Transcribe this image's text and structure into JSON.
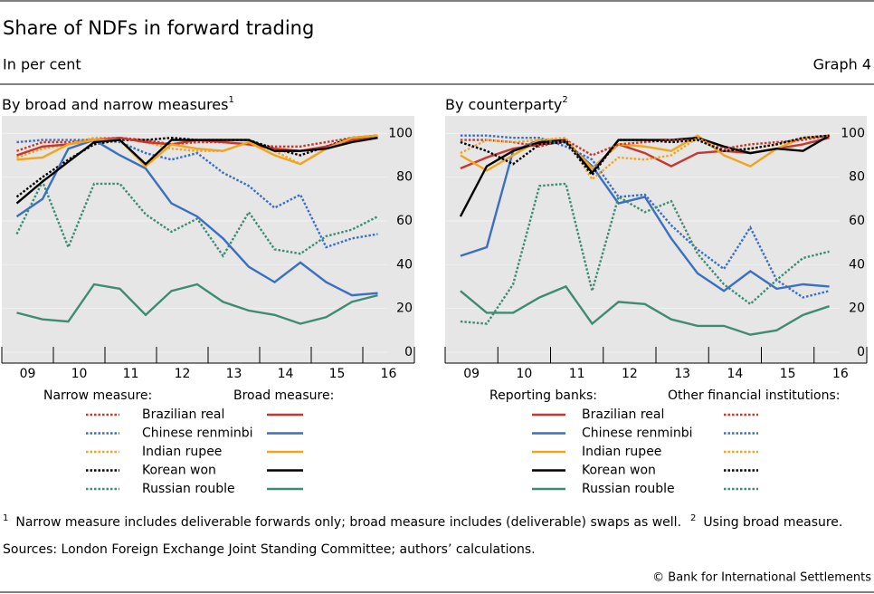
{
  "header": {
    "title": "Share of NDFs in forward trading",
    "subtitle": "In per cent",
    "graph_label": "Graph 4"
  },
  "chart_data": [
    {
      "type": "line",
      "title": "By broad and narrow measures",
      "title_note": "1",
      "categories": [
        "09",
        null,
        "10",
        null,
        "11",
        null,
        "12",
        null,
        "13",
        null,
        "14",
        null,
        "15",
        null,
        "16"
      ],
      "ylim": [
        -5,
        108
      ],
      "yticks": [
        0,
        20,
        40,
        60,
        80,
        100
      ],
      "currencies": [
        {
          "name": "Brazilian real",
          "color": "#c8372d"
        },
        {
          "name": "Chinese renminbi",
          "color": "#3a6fc4"
        },
        {
          "name": "Indian rupee",
          "color": "#f2a51c"
        },
        {
          "name": "Korean won",
          "color": "#000000"
        },
        {
          "name": "Russian rouble",
          "color": "#3f8c73"
        }
      ],
      "groups": [
        {
          "label": "Narrow measure:",
          "style": "dotted",
          "series": [
            {
              "values": [
                92,
                96,
                96,
                97,
                98,
                97,
                95,
                96,
                96,
                95,
                94,
                94,
                96,
                98,
                99
              ]
            },
            {
              "values": [
                96,
                97,
                97,
                97,
                96,
                91,
                88,
                91,
                82,
                76,
                66,
                72,
                48,
                52,
                54
              ]
            },
            {
              "values": [
                89,
                93,
                95,
                98,
                98,
                96,
                93,
                92,
                92,
                96,
                92,
                86,
                93,
                98,
                99
              ]
            },
            {
              "values": [
                71,
                80,
                88,
                95,
                97,
                97,
                98,
                97,
                97,
                97,
                93,
                90,
                94,
                98,
                99
              ]
            },
            {
              "values": [
                54,
                78,
                48,
                77,
                77,
                63,
                55,
                61,
                44,
                64,
                47,
                45,
                53,
                56,
                62
              ]
            }
          ]
        },
        {
          "label": "Broad measure:",
          "style": "solid",
          "series": [
            {
              "values": [
                90,
                94,
                95,
                97,
                98,
                96,
                95,
                97,
                96,
                95,
                93,
                92,
                94,
                97,
                99
              ]
            },
            {
              "values": [
                62,
                70,
                93,
                97,
                90,
                84,
                68,
                62,
                52,
                39,
                32,
                41,
                32,
                26,
                27
              ]
            },
            {
              "values": [
                88,
                89,
                95,
                97,
                97,
                85,
                95,
                93,
                92,
                96,
                90,
                86,
                93,
                98,
                99
              ]
            },
            {
              "values": [
                68,
                78,
                87,
                96,
                97,
                86,
                97,
                97,
                97,
                97,
                92,
                92,
                93,
                96,
                98
              ]
            },
            {
              "values": [
                18,
                15,
                14,
                31,
                29,
                17,
                28,
                31,
                23,
                19,
                17,
                13,
                16,
                23,
                26
              ]
            }
          ]
        }
      ]
    },
    {
      "type": "line",
      "title": "By counterparty",
      "title_note": "2",
      "categories": [
        "09",
        null,
        "10",
        null,
        "11",
        null,
        "12",
        null,
        "13",
        null,
        "14",
        null,
        "15",
        null,
        "16"
      ],
      "ylim": [
        -5,
        108
      ],
      "yticks": [
        0,
        20,
        40,
        60,
        80,
        100
      ],
      "currencies": [
        {
          "name": "Brazilian real",
          "color": "#c8372d"
        },
        {
          "name": "Chinese renminbi",
          "color": "#3a6fc4"
        },
        {
          "name": "Indian rupee",
          "color": "#f2a51c"
        },
        {
          "name": "Korean won",
          "color": "#000000"
        },
        {
          "name": "Russian rouble",
          "color": "#3f8c73"
        }
      ],
      "groups": [
        {
          "label": "Reporting banks:",
          "style": "solid",
          "series": [
            {
              "values": [
                84,
                89,
                93,
                95,
                97,
                84,
                95,
                91,
                85,
                91,
                92,
                91,
                93,
                95,
                98
              ]
            },
            {
              "values": [
                44,
                48,
                92,
                97,
                96,
                85,
                68,
                71,
                52,
                36,
                28,
                37,
                29,
                31,
                30
              ]
            },
            {
              "values": [
                90,
                83,
                90,
                97,
                97,
                84,
                95,
                94,
                92,
                99,
                90,
                85,
                93,
                98,
                99
              ]
            },
            {
              "values": [
                62,
                85,
                92,
                96,
                97,
                82,
                97,
                97,
                97,
                98,
                94,
                91,
                93,
                92,
                99
              ]
            },
            {
              "values": [
                28,
                18,
                18,
                25,
                30,
                13,
                23,
                22,
                15,
                12,
                12,
                8,
                10,
                17,
                21
              ]
            }
          ]
        },
        {
          "label": "Other financial institutions:",
          "style": "dotted",
          "series": [
            {
              "values": [
                97,
                97,
                96,
                94,
                97,
                90,
                95,
                96,
                97,
                97,
                93,
                95,
                96,
                97,
                99
              ]
            },
            {
              "values": [
                99,
                99,
                98,
                98,
                94,
                88,
                71,
                72,
                58,
                47,
                38,
                57,
                33,
                25,
                28
              ]
            },
            {
              "values": [
                91,
                97,
                96,
                97,
                98,
                79,
                89,
                88,
                90,
                98,
                92,
                93,
                95,
                98,
                99
              ]
            },
            {
              "values": [
                96,
                92,
                86,
                95,
                96,
                81,
                97,
                97,
                96,
                97,
                92,
                93,
                95,
                98,
                99
              ]
            },
            {
              "values": [
                14,
                13,
                31,
                76,
                77,
                28,
                71,
                64,
                69,
                45,
                31,
                22,
                33,
                43,
                46
              ]
            }
          ]
        }
      ]
    }
  ],
  "footnotes": [
    {
      "mark": "1",
      "text": "Narrow measure includes deliverable forwards only; broad measure includes (deliverable) swaps as well."
    },
    {
      "mark": "2",
      "text": "Using broad measure."
    }
  ],
  "sources": "Sources: London Foreign Exchange Joint Standing Committee; authors’ calculations.",
  "copyright": "© Bank for International Settlements"
}
